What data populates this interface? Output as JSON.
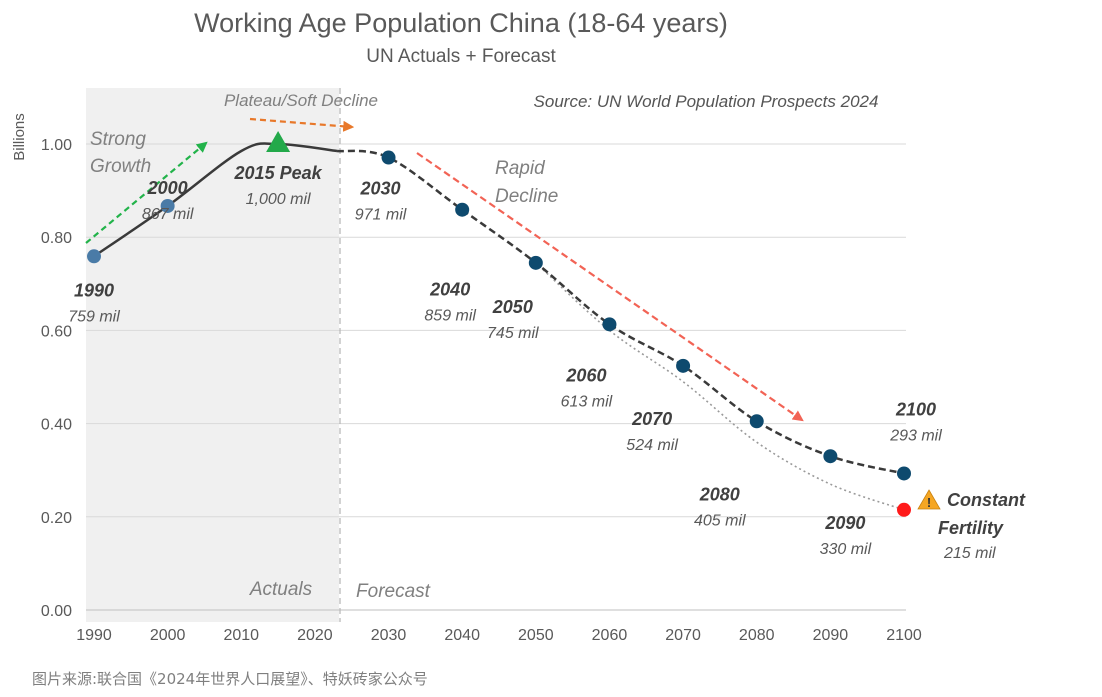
{
  "chart_data": {
    "type": "line",
    "title": "Working Age Population China (18-64 years)",
    "subtitle": "UN Actuals + Forecast",
    "source": "Source: UN World Population Prospects 2024",
    "ylabel": "Billions",
    "xlabel": "",
    "ylim": [
      0,
      1.0
    ],
    "xlim": [
      1990,
      2100
    ],
    "x_ticks": [
      "1990",
      "2000",
      "2010",
      "2020",
      "2030",
      "2040",
      "2050",
      "2060",
      "2070",
      "2080",
      "2090",
      "2100"
    ],
    "y_ticks": [
      "0.00",
      "0.20",
      "0.40",
      "0.60",
      "0.80",
      "1.00"
    ],
    "grid": true,
    "series": [
      {
        "kind": "actual",
        "x": [
          1990,
          2000,
          2010,
          2015,
          2023
        ],
        "y": [
          0.759,
          0.867,
          0.985,
          1.0,
          0.985
        ]
      },
      {
        "kind": "forecast",
        "x": [
          2023,
          2030,
          2040,
          2050,
          2060,
          2070,
          2080,
          2090,
          2100
        ],
        "y": [
          0.985,
          0.971,
          0.859,
          0.745,
          0.613,
          0.524,
          0.405,
          0.33,
          0.293
        ]
      },
      {
        "kind": "constant-fertility",
        "x": [
          2050,
          2060,
          2070,
          2080,
          2090,
          2100
        ],
        "y": [
          0.745,
          0.6,
          0.49,
          0.36,
          0.27,
          0.215
        ]
      }
    ],
    "point_labels": [
      {
        "x": 1990,
        "y": 0.759,
        "year": "1990",
        "value": "759 mil"
      },
      {
        "x": 2000,
        "y": 0.867,
        "year": "2000",
        "value": "867 mil"
      },
      {
        "x": 2015,
        "y": 1.0,
        "year": "2015 Peak",
        "value": "1,000 mil"
      },
      {
        "x": 2030,
        "y": 0.971,
        "year": "2030",
        "value": "971 mil"
      },
      {
        "x": 2040,
        "y": 0.859,
        "year": "2040",
        "value": "859 mil"
      },
      {
        "x": 2050,
        "y": 0.745,
        "year": "2050",
        "value": "745 mil"
      },
      {
        "x": 2060,
        "y": 0.613,
        "year": "2060",
        "value": "613 mil"
      },
      {
        "x": 2070,
        "y": 0.524,
        "year": "2070",
        "value": "524 mil"
      },
      {
        "x": 2080,
        "y": 0.405,
        "year": "2080",
        "value": "405 mil"
      },
      {
        "x": 2090,
        "y": 0.33,
        "year": "2090",
        "value": "330 mil"
      },
      {
        "x": 2100,
        "y": 0.293,
        "year": "2100",
        "value": "293 mil"
      }
    ],
    "constant_fertility": {
      "x": 2100,
      "y": 0.215,
      "line1": "Constant",
      "line2": "Fertility",
      "value": "215 mil"
    },
    "annotations": {
      "strong_growth": [
        "Strong",
        "Growth"
      ],
      "plateau": "Plateau/Soft Decline",
      "rapid_decline": [
        "Rapid",
        "Decline"
      ],
      "actuals": "Actuals",
      "forecast": "Forecast"
    },
    "colors": {
      "actual_line": "#3a3a3a",
      "early_marker": "#4a7ba7",
      "forecast_marker": "#0e4a6e",
      "peak_marker": "#23a94a",
      "constant_fertility_marker": "#ff1a1a",
      "growth_arrow": "#22b34a",
      "plateau_arrow": "#e8782a",
      "decline_arrow": "#f26355",
      "warning": "#f5a623",
      "actuals_shade": "#f0f0f0"
    }
  },
  "footer": "图片来源:联合国《2024年世界人口展望》、特妖砖家公众号"
}
